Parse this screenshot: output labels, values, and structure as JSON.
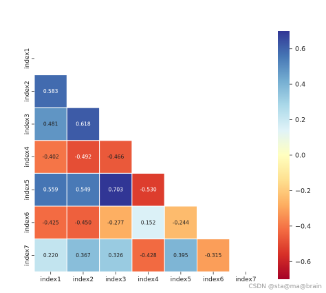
{
  "chart_data": {
    "type": "heatmap",
    "title": "",
    "xlabel": "",
    "ylabel": "",
    "row_labels": [
      "index1",
      "index2",
      "index3",
      "index4",
      "index5",
      "index6",
      "index7"
    ],
    "col_labels": [
      "index1",
      "index2",
      "index3",
      "index4",
      "index5",
      "index6",
      "index7"
    ],
    "mask": "upper-triangle including diagonal",
    "cells": [
      {
        "row": 1,
        "col": 0,
        "value": 0.583,
        "label": "0.583"
      },
      {
        "row": 2,
        "col": 0,
        "value": 0.481,
        "label": "0.481"
      },
      {
        "row": 2,
        "col": 1,
        "value": 0.618,
        "label": "0.618"
      },
      {
        "row": 3,
        "col": 0,
        "value": -0.402,
        "label": "-0.402"
      },
      {
        "row": 3,
        "col": 1,
        "value": -0.492,
        "label": "-0.492"
      },
      {
        "row": 3,
        "col": 2,
        "value": -0.466,
        "label": "-0.466"
      },
      {
        "row": 4,
        "col": 0,
        "value": 0.559,
        "label": "0.559"
      },
      {
        "row": 4,
        "col": 1,
        "value": 0.549,
        "label": "0.549"
      },
      {
        "row": 4,
        "col": 2,
        "value": 0.703,
        "label": "0.703"
      },
      {
        "row": 4,
        "col": 3,
        "value": -0.53,
        "label": "-0.530"
      },
      {
        "row": 5,
        "col": 0,
        "value": -0.425,
        "label": "-0.425"
      },
      {
        "row": 5,
        "col": 1,
        "value": -0.45,
        "label": "-0.450"
      },
      {
        "row": 5,
        "col": 2,
        "value": -0.277,
        "label": "-0.277"
      },
      {
        "row": 5,
        "col": 3,
        "value": 0.152,
        "label": "0.152"
      },
      {
        "row": 5,
        "col": 4,
        "value": -0.244,
        "label": "-0.244"
      },
      {
        "row": 6,
        "col": 0,
        "value": 0.22,
        "label": "0.220"
      },
      {
        "row": 6,
        "col": 1,
        "value": 0.367,
        "label": "0.367"
      },
      {
        "row": 6,
        "col": 2,
        "value": 0.326,
        "label": "0.326"
      },
      {
        "row": 6,
        "col": 3,
        "value": -0.428,
        "label": "-0.428"
      },
      {
        "row": 6,
        "col": 4,
        "value": 0.395,
        "label": "0.395"
      },
      {
        "row": 6,
        "col": 5,
        "value": -0.315,
        "label": "-0.315"
      }
    ],
    "colorbar": {
      "colormap": "RdYlBu",
      "vmin": -0.7,
      "vmax": 0.7,
      "ticks": [
        -0.6,
        -0.4,
        -0.2,
        0.0,
        0.2,
        0.4,
        0.6
      ],
      "tick_labels": [
        "−0.6",
        "−0.4",
        "−0.2",
        "0.0",
        "0.2",
        "0.4",
        "0.6"
      ],
      "stops": [
        "#a50026",
        "#d73027",
        "#f46d43",
        "#fdae61",
        "#fee090",
        "#ffffbf",
        "#e0f3f8",
        "#abd9e9",
        "#74add1",
        "#4575b4",
        "#313695"
      ]
    },
    "grid": false,
    "legend": "colorbar-right"
  },
  "watermark": "CSDN @sta@ma@brain"
}
